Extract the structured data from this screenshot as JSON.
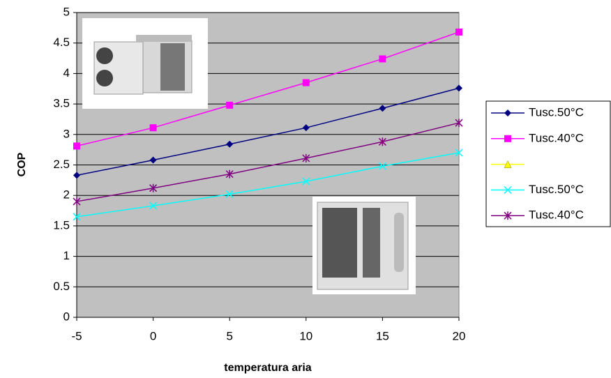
{
  "chart_data": {
    "type": "line",
    "x_label": "temperatura aria",
    "y_label": "COP",
    "x": [
      -5,
      0,
      5,
      10,
      15,
      20
    ],
    "series": [
      {
        "name": "Tusc.50°C",
        "color": "#000080",
        "marker": "diamond",
        "values": [
          2.33,
          2.58,
          2.84,
          3.11,
          3.43,
          3.76
        ]
      },
      {
        "name": "Tusc.40°C",
        "color": "#ff00ff",
        "marker": "square",
        "values": [
          2.81,
          3.11,
          3.48,
          3.85,
          4.24,
          4.68
        ]
      },
      {
        "color": "#ffff00",
        "marker": "triangle",
        "values": [
          null,
          null,
          null,
          null,
          null,
          null
        ]
      },
      {
        "name": "Tusc.50°C",
        "color": "#00ffff",
        "marker": "x",
        "values": [
          1.65,
          1.83,
          2.02,
          2.23,
          2.48,
          2.7
        ]
      },
      {
        "name": "Tusc.40°C",
        "color": "#800080",
        "marker": "star",
        "values": [
          1.9,
          2.12,
          2.35,
          2.61,
          2.88,
          3.19
        ]
      }
    ],
    "xlim": [
      -5,
      20
    ],
    "xticks": [
      -5,
      0,
      5,
      10,
      15,
      20
    ],
    "ylim": [
      0,
      5
    ],
    "yticks": [
      0,
      0.5,
      1,
      1.5,
      2,
      2.5,
      3,
      3.5,
      4,
      4.5,
      5
    ],
    "grid": true,
    "plot_background": "#c0c0c0",
    "legend": "right"
  }
}
